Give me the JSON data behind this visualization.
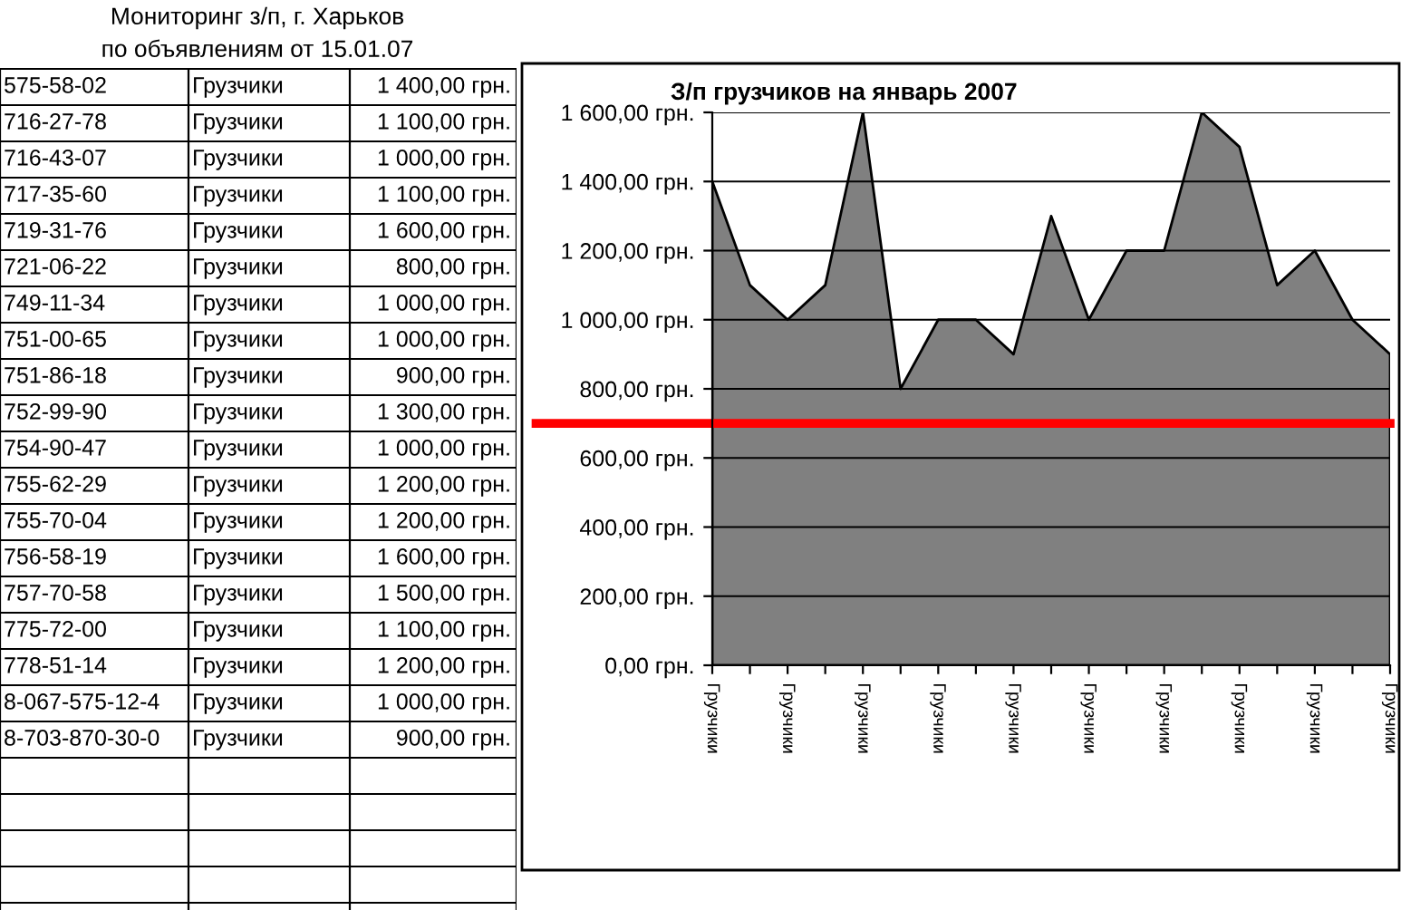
{
  "chart_data": [
    {
      "type": "other",
      "title": "Мониторинг з/п, г. Харьков",
      "subtitle": "по объявлениям от 15.01.07",
      "annotations": [
        "575-58-02",
        "Грузчики",
        "1 400,00 грн.",
        "716-27-78",
        "Грузчики",
        "1 100,00 грн.",
        "716-43-07",
        "Грузчики",
        "1 000,00 грн.",
        "717-35-60",
        "Грузчики",
        "1 100,00 грн.",
        "719-31-76",
        "Грузчики",
        "1 600,00 грн.",
        "721-06-22",
        "Грузчики",
        "800,00 грн.",
        "749-11-34",
        "Грузчики",
        "1 000,00 грн.",
        "751-00-65",
        "Грузчики",
        "1 000,00 грн.",
        "751-86-18",
        "Грузчики",
        "900,00 грн.",
        "752-99-90",
        "Грузчики",
        "1 300,00 грн.",
        "754-90-47",
        "Грузчики",
        "1 000,00 грн.",
        "755-62-29",
        "Грузчики",
        "1 200,00 грн.",
        "755-70-04",
        "Грузчики",
        "1 200,00 грн.",
        "756-58-19",
        "Грузчики",
        "1 600,00 грн.",
        "757-70-58",
        "Грузчики",
        "1 500,00 грн.",
        "775-72-00",
        "Грузчики",
        "1 100,00 грн.",
        "778-51-14",
        "Грузчики",
        "1 200,00 грн.",
        "8-067-575-12-4",
        "Грузчики",
        "1 000,00 грн.",
        "8-703-870-30-0",
        "Грузчики",
        "900,00 грн."
      ]
    },
    {
      "type": "area",
      "title": "З/п грузчиков на январь 2007",
      "categories": [
        "Грузчики",
        null,
        "Грузчики",
        null,
        "Грузчики",
        null,
        "Грузчики",
        null,
        "Грузчики",
        null,
        "Грузчики",
        null,
        "Грузчики",
        null,
        "Грузчики",
        null,
        "Грузчики",
        null,
        "Грузчики"
      ],
      "series": [
        {
          "color": "#808080",
          "values": [
            1400,
            1100,
            1000,
            1100,
            1600,
            800,
            1000,
            1000,
            900,
            1300,
            1000,
            1200,
            1200,
            1600,
            1500,
            1100,
            1200,
            1000,
            900
          ]
        }
      ],
      "ylim": [
        0,
        1600
      ],
      "yticks": [
        {
          "value": 0,
          "label": "0,00 грн."
        },
        {
          "value": 200,
          "label": "200,00 грн."
        },
        {
          "value": 400,
          "label": "400,00 грн."
        },
        {
          "value": 600,
          "label": "600,00 грн."
        },
        {
          "value": 800,
          "label": "800,00 грн."
        },
        {
          "value": 1000,
          "label": "1 000,00 грн."
        },
        {
          "value": 1200,
          "label": "1 200,00 грн."
        },
        {
          "value": 1400,
          "label": "1 400,00 грн."
        },
        {
          "value": 1600,
          "label": "1 600,00 грн."
        }
      ],
      "grid": "y",
      "ref_lines": [
        {
          "axis": "y",
          "value": 700,
          "color": "#ff0000"
        }
      ],
      "legend": false
    }
  ]
}
